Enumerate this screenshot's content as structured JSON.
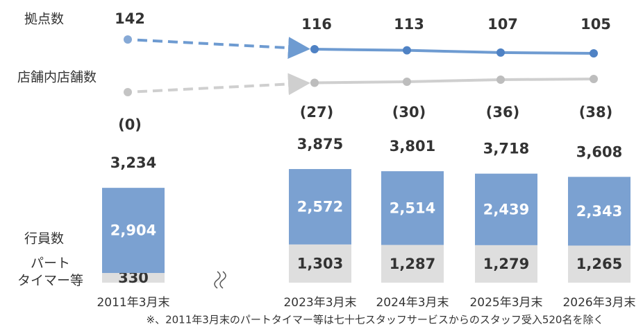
{
  "chart_data": {
    "type": "bar",
    "categories": [
      "2011年3月末",
      "2023年3月末",
      "2024年3月末",
      "2025年3月末",
      "2026年3月末"
    ],
    "series": [
      {
        "name": "パート\nタイマー等",
        "color": "#dedede",
        "values": [
          330,
          1303,
          1287,
          1279,
          1265
        ],
        "value_labels": [
          "330",
          "1,303",
          "1,287",
          "1,279",
          "1,265"
        ]
      },
      {
        "name": "行員数",
        "color": "#7ba1d1",
        "values": [
          2904,
          2572,
          2514,
          2439,
          2343
        ],
        "value_labels": [
          "2,904",
          "2,572",
          "2,514",
          "2,439",
          "2,343"
        ]
      }
    ],
    "totals": [
      3234,
      3875,
      3801,
      3718,
      3608
    ],
    "total_labels": [
      "3,234",
      "3,875",
      "3,801",
      "3,718",
      "3,608"
    ],
    "lines": [
      {
        "type": "line",
        "name": "拠点数",
        "color": "#6e9bd1",
        "values": [
          142,
          116,
          113,
          107,
          105
        ]
      },
      {
        "type": "line",
        "name": "店舗内店舗数",
        "color": "#cfcfcf",
        "values": [
          0,
          27,
          30,
          36,
          38
        ],
        "value_labels": [
          "(0)",
          "(27)",
          "(30)",
          "(36)",
          "(38)"
        ]
      }
    ],
    "note": "※、2011年3月末のパートタイマー等は七十七スタッフサービスからのスタッフ受入520名を除く"
  }
}
